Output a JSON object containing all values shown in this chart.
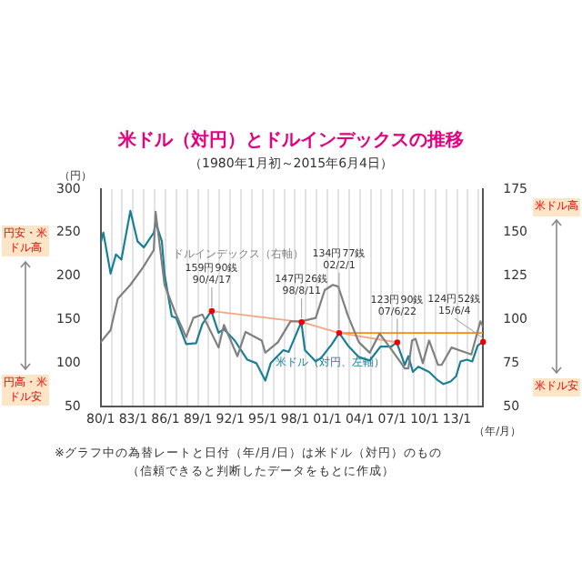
{
  "chart_data": {
    "type": "line",
    "title": "米ドル（対円）とドルインデックスの推移",
    "subtitle": "（1980年1月初～2015年6月4日）",
    "xlabel": "（年/月）",
    "ylabel": "（円）",
    "annotations": [
      "円安・米ドル高",
      "円高・米ドル安",
      "米ドル高",
      "米ドル安",
      "※グラフ中の為替レートと日付（年/月/日）は米ドル（対円）のもの",
      "（信頼できると判断したデータをもとに作成）",
      {
        "text": "159円90銭\n90/4/17",
        "x": "1990-04-17",
        "y": 159.9
      },
      {
        "text": "147円26銭\n98/8/11",
        "x": "1998-08-11",
        "y": 147.26
      },
      {
        "text": "134円77銭\n02/2/1",
        "x": "2002-02-01",
        "y": 134.77
      },
      {
        "text": "123円90銭\n07/6/22",
        "x": "2007-06-22",
        "y": 123.9
      },
      {
        "text": "124円52銭\n15/6/4",
        "x": "2015-06-04",
        "y": 124.52
      }
    ],
    "xlim": [
      "1980-01",
      "2015-06-04"
    ],
    "xticks": [
      {
        "value": "1980-01",
        "label": "80/1"
      },
      {
        "value": "1981-01",
        "label": null
      },
      {
        "value": "1982-01",
        "label": null
      },
      {
        "value": "1983-01",
        "label": "83/1"
      },
      {
        "value": "1984-01",
        "label": null
      },
      {
        "value": "1985-01",
        "label": null
      },
      {
        "value": "1986-01",
        "label": "86/1"
      },
      {
        "value": "1987-01",
        "label": null
      },
      {
        "value": "1988-01",
        "label": null
      },
      {
        "value": "1989-01",
        "label": "89/1"
      },
      {
        "value": "1990-01",
        "label": null
      },
      {
        "value": "1991-01",
        "label": null
      },
      {
        "value": "1992-01",
        "label": "92/1"
      },
      {
        "value": "1993-01",
        "label": null
      },
      {
        "value": "1994-01",
        "label": null
      },
      {
        "value": "1995-01",
        "label": "95/1"
      },
      {
        "value": "1996-01",
        "label": null
      },
      {
        "value": "1997-01",
        "label": null
      },
      {
        "value": "1998-01",
        "label": "98/1"
      },
      {
        "value": "1999-01",
        "label": null
      },
      {
        "value": "2000-01",
        "label": null
      },
      {
        "value": "2001-01",
        "label": "01/1"
      },
      {
        "value": "2002-01",
        "label": null
      },
      {
        "value": "2003-01",
        "label": null
      },
      {
        "value": "2004-01",
        "label": "04/1"
      },
      {
        "value": "2005-01",
        "label": null
      },
      {
        "value": "2006-01",
        "label": null
      },
      {
        "value": "2007-01",
        "label": "07/1"
      },
      {
        "value": "2008-01",
        "label": null
      },
      {
        "value": "2009-01",
        "label": null
      },
      {
        "value": "2010-01",
        "label": "10/1"
      },
      {
        "value": "2011-01",
        "label": null
      },
      {
        "value": "2012-01",
        "label": null
      },
      {
        "value": "2013-01",
        "label": "13/1"
      },
      {
        "value": "2014-01",
        "label": null
      },
      {
        "value": "2015-01",
        "label": null
      }
    ],
    "ylim": [
      50,
      300
    ],
    "yticks": [
      50,
      100,
      150,
      200,
      250,
      300
    ],
    "y2lim": [
      50,
      175
    ],
    "y2ticks": [
      50,
      75,
      100,
      125,
      150,
      175
    ],
    "grid": "x",
    "legend": false,
    "line_style": "solid",
    "series": [
      {
        "name": "ドルインデックス（右軸）",
        "color": "#808080",
        "axis": "y2",
        "x": [
          "1980-01",
          "1980-12",
          "1981-08",
          "1982-10",
          "1983-12",
          "1984-12",
          "1985-02",
          "1985-12",
          "1986-12",
          "1987-12",
          "1988-08",
          "1989-06",
          "1990-12",
          "1991-06",
          "1992-09",
          "1993-06",
          "1994-12",
          "1995-04",
          "1996-06",
          "1997-08",
          "1998-08",
          "1999-12",
          "2000-10",
          "2001-07",
          "2002-01",
          "2002-12",
          "2003-12",
          "2004-12",
          "2005-11",
          "2006-12",
          "2007-11",
          "2008-03",
          "2008-07",
          "2008-11",
          "2009-03",
          "2009-11",
          "2010-06",
          "2011-04",
          "2011-08",
          "2012-07",
          "2013-06",
          "2014-05",
          "2015-03",
          "2015-06"
        ],
        "values": [
          87,
          94,
          112,
          120,
          130,
          140,
          162,
          120,
          104,
          90,
          101,
          103,
          84,
          97,
          79,
          93,
          88,
          81,
          87,
          99,
          99,
          101,
          117,
          120,
          119,
          102,
          87,
          81,
          92,
          83,
          75,
          72,
          72,
          88,
          89,
          75,
          88,
          74,
          74,
          84,
          82,
          80,
          99,
          96
        ]
      },
      {
        "name": "米ドル（対円、左軸）",
        "color": "#1a7f94",
        "x": [
          "1980-01",
          "1980-04",
          "1980-12",
          "1981-06",
          "1981-12",
          "1982-10",
          "1983-06",
          "1984-01",
          "1984-12",
          "1985-02",
          "1985-09",
          "1985-12",
          "1986-08",
          "1987-01",
          "1987-12",
          "1988-11",
          "1989-06",
          "1990-04",
          "1990-12",
          "1991-06",
          "1992-06",
          "1993-08",
          "1994-06",
          "1995-04",
          "1995-10",
          "1996-12",
          "1997-06",
          "1998-08",
          "1998-12",
          "1999-12",
          "2000-06",
          "2001-06",
          "2002-02",
          "2002-12",
          "2003-12",
          "2004-12",
          "2005-12",
          "2006-12",
          "2007-06",
          "2008-03",
          "2008-07",
          "2008-12",
          "2009-06",
          "2010-06",
          "2011-03",
          "2011-10",
          "2012-06",
          "2012-12",
          "2013-05",
          "2013-12",
          "2014-06",
          "2014-12",
          "2015-06"
        ],
        "values": [
          238,
          250,
          203,
          225,
          219,
          275,
          240,
          233,
          250,
          262,
          240,
          202,
          154,
          152,
          122,
          123,
          145,
          159.9,
          135,
          139,
          126,
          104,
          100,
          80,
          100,
          115,
          113,
          147.26,
          115,
          102,
          106,
          122,
          134.77,
          120,
          107,
          103,
          119,
          119,
          123.9,
          98,
          108,
          90,
          96,
          90,
          81,
          76,
          79,
          85,
          102,
          104,
          102,
          120,
          124.52
        ]
      },
      {
        "color": "#f4a582",
        "x": [
          "1990-04-17",
          "1998-08-11",
          "2002-02-01",
          "2007-06-22"
        ],
        "values": [
          159.9,
          147.26,
          134.77,
          123.9
        ]
      },
      {
        "color": "#f08c1e",
        "x": [
          "2002-02-01",
          "2015-06-04"
        ],
        "values": [
          134.77,
          134.77
        ]
      }
    ]
  }
}
